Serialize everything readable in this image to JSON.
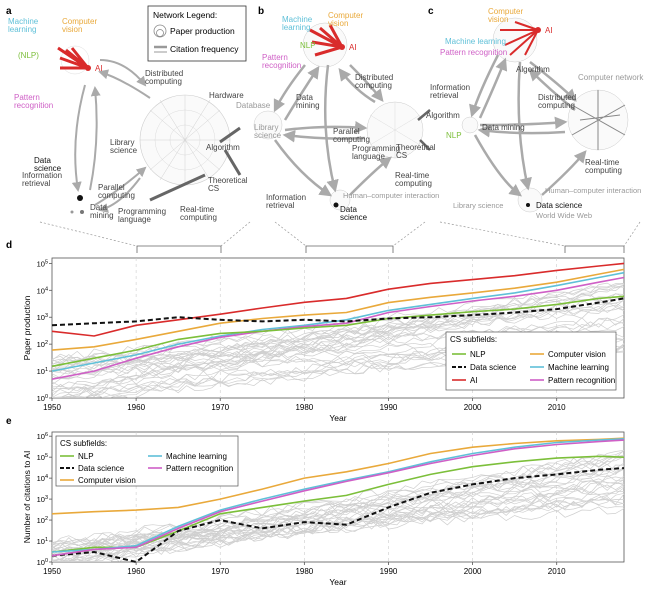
{
  "figure": {
    "panel_letters": [
      "a",
      "b",
      "c",
      "d",
      "e"
    ],
    "legend": {
      "title": "Network Legend:",
      "paper_production": "Paper production",
      "citation_frequency": "Citation frequency"
    }
  },
  "networks": {
    "a": {
      "labels": [
        {
          "text": "Machine\nlearning",
          "color": "#5fc0d8"
        },
        {
          "text": "(NLP)",
          "color": "#7cbf3a"
        },
        {
          "text": "Computer\nvision",
          "color": "#e9a93b"
        },
        {
          "text": "AI",
          "color": "#d92b2b"
        },
        {
          "text": "Pattern\nrecognition",
          "color": "#cf5fc6"
        },
        {
          "text": "Data\nscience",
          "color": "#111111"
        },
        {
          "text": "Information\nretrieval",
          "color": "#444444"
        },
        {
          "text": "Data\nmining",
          "color": "#444444"
        },
        {
          "text": "Distributed\ncomputing",
          "color": "#444444"
        },
        {
          "text": "Hardware",
          "color": "#444444"
        },
        {
          "text": "Library\nscience",
          "color": "#444444"
        },
        {
          "text": "Algorithm",
          "color": "#444444"
        },
        {
          "text": "Parallel\ncomputing",
          "color": "#444444"
        },
        {
          "text": "Theoretical\nCS",
          "color": "#444444"
        },
        {
          "text": "Programming\nlanguage",
          "color": "#444444"
        },
        {
          "text": "Real-time\ncomputing",
          "color": "#444444"
        }
      ]
    },
    "b": {
      "labels": [
        {
          "text": "Machine\nlearning",
          "color": "#5fc0d8"
        },
        {
          "text": "Computer\nvision",
          "color": "#e9a93b"
        },
        {
          "text": "NLP",
          "color": "#7cbf3a"
        },
        {
          "text": "AI",
          "color": "#d92b2b"
        },
        {
          "text": "Pattern\nrecognition",
          "color": "#cf5fc6"
        },
        {
          "text": "Database",
          "color": "#999999"
        },
        {
          "text": "Data\nmining",
          "color": "#444444"
        },
        {
          "text": "Library\nscience",
          "color": "#999999"
        },
        {
          "text": "Distributed\ncomputing",
          "color": "#444444"
        },
        {
          "text": "Parallel\ncomputing",
          "color": "#444444"
        },
        {
          "text": "Theoretical\nCS",
          "color": "#444444"
        },
        {
          "text": "Programming\nlanguage",
          "color": "#444444"
        },
        {
          "text": "Real-time\ncomputing",
          "color": "#444444"
        },
        {
          "text": "Information\nretrieval",
          "color": "#444444"
        },
        {
          "text": "Human–computer interaction",
          "color": "#999999"
        },
        {
          "text": "Data\nscience",
          "color": "#111111"
        }
      ]
    },
    "c": {
      "labels": [
        {
          "text": "Computer\nvision",
          "color": "#e9a93b"
        },
        {
          "text": "AI",
          "color": "#d92b2b"
        },
        {
          "text": "Machine learning",
          "color": "#5fc0d8"
        },
        {
          "text": "Pattern recognition",
          "color": "#cf5fc6"
        },
        {
          "text": "Algorithm",
          "color": "#444444"
        },
        {
          "text": "Computer network",
          "color": "#999999"
        },
        {
          "text": "Information\nretrieval",
          "color": "#444444"
        },
        {
          "text": "Algorithm",
          "color": "#444444"
        },
        {
          "text": "Distributed\ncomputing",
          "color": "#444444"
        },
        {
          "text": "NLP",
          "color": "#7cbf3a"
        },
        {
          "text": "Data mining",
          "color": "#444444"
        },
        {
          "text": "Real-time\ncomputing",
          "color": "#444444"
        },
        {
          "text": "Human–computer interaction",
          "color": "#999999"
        },
        {
          "text": "Library science",
          "color": "#999999"
        },
        {
          "text": "Data science",
          "color": "#111111"
        },
        {
          "text": "World Wide Web",
          "color": "#999999"
        }
      ]
    }
  },
  "chart_data": [
    {
      "panel": "d",
      "type": "line",
      "xlabel": "Year",
      "ylabel": "Paper production",
      "xlim": [
        1950,
        2018
      ],
      "ylim_log10": [
        0,
        5.2
      ],
      "y_scale": "log",
      "x_ticks": [
        1950,
        1960,
        1970,
        1980,
        1990,
        2000,
        2010
      ],
      "y_ticks": [
        "10^0",
        "10^1",
        "10^2",
        "10^3",
        "10^4",
        "10^5"
      ],
      "legend_title": "CS subfields:",
      "legend_position": "lower-right",
      "x": [
        1950,
        1955,
        1960,
        1965,
        1970,
        1975,
        1980,
        1985,
        1990,
        1995,
        2000,
        2005,
        2010,
        2015,
        2018
      ],
      "series": [
        {
          "name": "AI",
          "color": "#d92b2b",
          "dashed": false,
          "values": [
            300,
            200,
            500,
            800,
            1300,
            2200,
            3600,
            5000,
            11000,
            18000,
            25000,
            35000,
            55000,
            80000,
            100000
          ]
        },
        {
          "name": "Computer vision",
          "color": "#e9a93b",
          "dashed": false,
          "values": [
            60,
            80,
            150,
            300,
            600,
            900,
            1200,
            1500,
            3500,
            5500,
            8000,
            12000,
            20000,
            40000,
            60000
          ]
        },
        {
          "name": "Machine learning",
          "color": "#5fc0d8",
          "dashed": false,
          "values": [
            10,
            20,
            40,
            100,
            200,
            350,
            500,
            800,
            1800,
            3000,
            5000,
            8000,
            15000,
            30000,
            45000
          ]
        },
        {
          "name": "Pattern recognition",
          "color": "#cf5fc6",
          "dashed": false,
          "values": [
            5,
            10,
            30,
            80,
            180,
            300,
            450,
            600,
            1500,
            2500,
            4000,
            6000,
            10000,
            20000,
            30000
          ]
        },
        {
          "name": "NLP",
          "color": "#7cbf3a",
          "dashed": false,
          "values": [
            15,
            30,
            60,
            150,
            250,
            300,
            400,
            500,
            900,
            1200,
            1600,
            2000,
            3000,
            5000,
            6000
          ]
        },
        {
          "name": "Data science",
          "color": "#111111",
          "dashed": true,
          "values": [
            500,
            600,
            700,
            1000,
            800,
            700,
            800,
            700,
            900,
            1000,
            1200,
            1500,
            2000,
            3500,
            5000
          ]
        }
      ]
    },
    {
      "panel": "e",
      "type": "line",
      "xlabel": "Year",
      "ylabel": "Number of citations to AI",
      "xlim": [
        1950,
        2018
      ],
      "ylim_log10": [
        0,
        6.2
      ],
      "y_scale": "log",
      "x_ticks": [
        1950,
        1960,
        1970,
        1980,
        1990,
        2000,
        2010
      ],
      "y_ticks": [
        "10^0",
        "10^1",
        "10^2",
        "10^3",
        "10^4",
        "10^5",
        "10^6"
      ],
      "legend_title": "CS subfields:",
      "legend_position": "upper-left",
      "x": [
        1950,
        1955,
        1960,
        1965,
        1970,
        1975,
        1980,
        1985,
        1990,
        1995,
        2000,
        2005,
        2010,
        2015,
        2018
      ],
      "series": [
        {
          "name": "NLP",
          "color": "#7cbf3a",
          "dashed": false,
          "values": [
            3,
            5,
            5,
            30,
            200,
            400,
            800,
            1500,
            5000,
            15000,
            35000,
            60000,
            90000,
            110000,
            100000
          ]
        },
        {
          "name": "Data science",
          "color": "#111111",
          "dashed": true,
          "values": [
            2,
            3,
            1,
            30,
            100,
            40,
            80,
            60,
            400,
            2000,
            5000,
            10000,
            15000,
            25000,
            30000
          ]
        },
        {
          "name": "Computer vision",
          "color": "#e9a93b",
          "dashed": false,
          "values": [
            200,
            250,
            300,
            400,
            1000,
            3000,
            10000,
            20000,
            50000,
            150000,
            300000,
            450000,
            600000,
            700000,
            800000
          ]
        },
        {
          "name": "Machine learning",
          "color": "#5fc0d8",
          "dashed": false,
          "values": [
            3,
            4,
            6,
            50,
            300,
            1000,
            3000,
            8000,
            20000,
            60000,
            150000,
            300000,
            500000,
            650000,
            750000
          ]
        },
        {
          "name": "Pattern recognition",
          "color": "#cf5fc6",
          "dashed": false,
          "values": [
            2,
            4,
            5,
            40,
            250,
            800,
            2500,
            7000,
            18000,
            50000,
            120000,
            250000,
            400000,
            550000,
            650000
          ]
        }
      ]
    }
  ]
}
